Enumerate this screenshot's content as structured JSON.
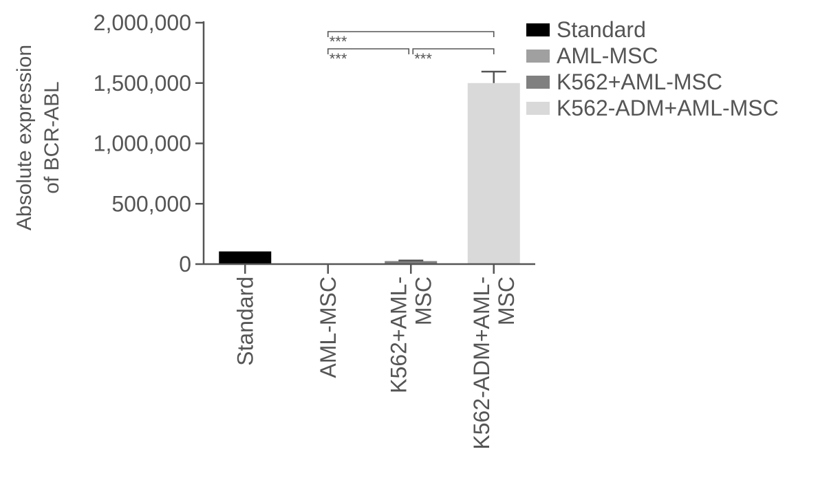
{
  "chart_data": {
    "type": "bar",
    "title": "",
    "ylabel_lines": [
      "Absolute expression",
      "of BCR-ABL"
    ],
    "xlabel": "",
    "ylim": [
      0,
      2000000
    ],
    "y_ticks": [
      0,
      500000,
      1000000,
      1500000,
      2000000
    ],
    "y_tick_labels": [
      "0",
      "500,000",
      "1,000,000",
      "1,500,000",
      "2,000,000"
    ],
    "categories": [
      {
        "label_lines": [
          "Standard"
        ]
      },
      {
        "label_lines": [
          "AML-MSC"
        ]
      },
      {
        "label_lines": [
          "K562+AML-",
          "MSC"
        ]
      },
      {
        "label_lines": [
          "K562-ADM+AML-",
          "MSC"
        ]
      }
    ],
    "values": [
      105000,
      0,
      25000,
      1500000
    ],
    "errors": [
      0,
      0,
      5000,
      95000
    ],
    "colors": [
      "#000000",
      "#a0a0a0",
      "#808080",
      "#d9d9d9"
    ],
    "legend": {
      "placement": "top-right",
      "entries": [
        {
          "label": "Standard",
          "color": "#000000"
        },
        {
          "label": "AML-MSC",
          "color": "#a0a0a0"
        },
        {
          "label": "K562+AML-MSC",
          "color": "#808080"
        },
        {
          "label": "K562-ADM+AML-MSC",
          "color": "#d9d9d9"
        }
      ]
    },
    "significance": [
      {
        "from": 1,
        "to": 3,
        "label": "***",
        "level": 0
      },
      {
        "from": 1,
        "to": 2,
        "label": "***",
        "level": 1
      },
      {
        "from": 2,
        "to": 3,
        "label": "***",
        "level": 1
      }
    ]
  }
}
